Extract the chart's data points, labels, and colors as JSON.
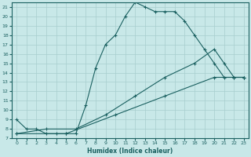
{
  "xlabel": "Humidex (Indice chaleur)",
  "bg_color": "#c8e8e8",
  "grid_color": "#a8cece",
  "line_color": "#1a6060",
  "xlim": [
    -0.5,
    23.5
  ],
  "ylim": [
    7,
    21.5
  ],
  "xticks": [
    0,
    1,
    2,
    3,
    4,
    5,
    6,
    7,
    8,
    9,
    10,
    11,
    12,
    13,
    14,
    15,
    16,
    17,
    18,
    19,
    20,
    21,
    22,
    23
  ],
  "yticks": [
    7,
    8,
    9,
    10,
    11,
    12,
    13,
    14,
    15,
    16,
    17,
    18,
    19,
    20,
    21
  ],
  "curve1_x": [
    0,
    1,
    2,
    3,
    4,
    5,
    6,
    7,
    8,
    9,
    10,
    11,
    12,
    13,
    14,
    15,
    16,
    17,
    18,
    19,
    20,
    21,
    22,
    23
  ],
  "curve1_y": [
    9.0,
    8.0,
    8.0,
    7.5,
    7.5,
    7.5,
    7.5,
    10.5,
    14.5,
    17.0,
    18.0,
    20.0,
    21.5,
    21.0,
    20.5,
    20.5,
    20.5,
    19.5,
    18.0,
    16.5,
    15.0,
    13.5,
    13.5,
    13.5
  ],
  "curve2_x": [
    0,
    3,
    6,
    9,
    12,
    15,
    18,
    20,
    21,
    22,
    23
  ],
  "curve2_y": [
    7.5,
    8.0,
    8.0,
    9.5,
    11.5,
    13.5,
    15.0,
    16.5,
    15.0,
    13.5,
    13.5
  ],
  "curve3_x": [
    0,
    5,
    10,
    15,
    20,
    23
  ],
  "curve3_y": [
    7.5,
    7.5,
    9.5,
    11.5,
    13.5,
    13.5
  ]
}
